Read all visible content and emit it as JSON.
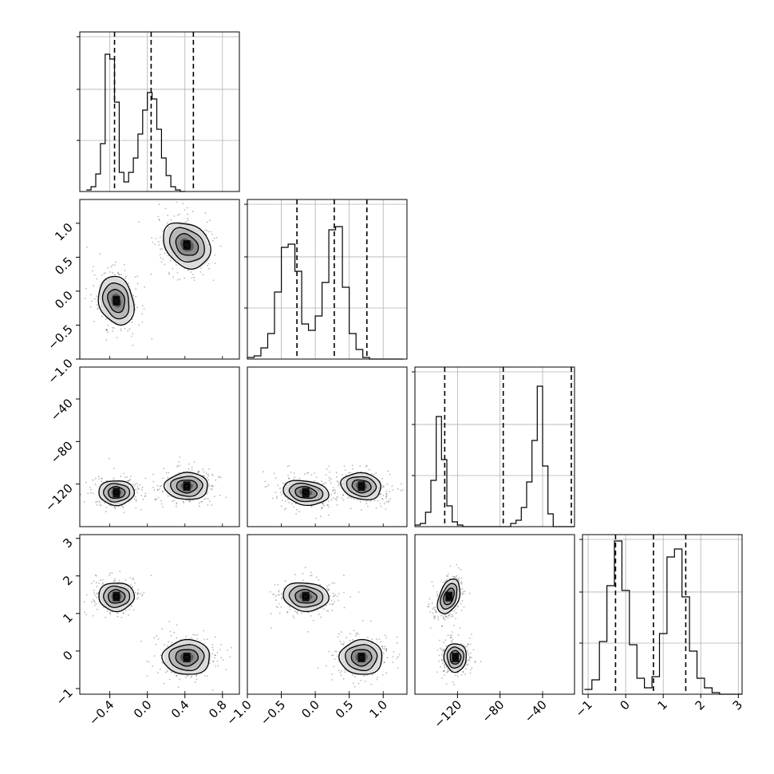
{
  "chart_data": {
    "type": "corner",
    "parameters": [
      {
        "range": [
          -0.72,
          0.98
        ],
        "ticks": [
          -0.4,
          0.0,
          0.4,
          0.8
        ],
        "tick_labels": [
          "−0.4",
          "0.0",
          "0.4",
          "0.8"
        ],
        "quantiles": [
          -0.35,
          0.04,
          0.49
        ],
        "hist": {
          "bin_start": -0.65,
          "bin_width": 0.05,
          "counts": [
            0.01,
            0.03,
            0.11,
            0.3,
            0.86,
            0.83,
            0.56,
            0.12,
            0.06,
            0.12,
            0.21,
            0.36,
            0.51,
            0.62,
            0.58,
            0.39,
            0.21,
            0.1,
            0.03,
            0.01,
            0.0
          ]
        }
      },
      {
        "range": [
          -1.0,
          1.35
        ],
        "ticks": [
          -1.0,
          -0.5,
          0.0,
          0.5,
          1.0
        ],
        "tick_labels": [
          "−1.0",
          "−0.5",
          "0.0",
          "0.5",
          "1.0"
        ],
        "quantiles": [
          -0.27,
          0.28,
          0.76
        ],
        "hist": {
          "bin_start": -1.0,
          "bin_width": 0.1,
          "counts": [
            0.01,
            0.02,
            0.07,
            0.16,
            0.42,
            0.7,
            0.72,
            0.55,
            0.22,
            0.18,
            0.27,
            0.48,
            0.81,
            0.83,
            0.45,
            0.16,
            0.06,
            0.01,
            0.0,
            0.0,
            0.0,
            0.0,
            0.0
          ]
        }
      },
      {
        "range": [
          -160,
          -10
        ],
        "ticks": [
          -120,
          -80,
          -40
        ],
        "tick_labels": [
          "−120",
          "−80",
          "−40"
        ],
        "quantiles": [
          -132,
          -77,
          -13
        ],
        "hist": {
          "bin_start": -160,
          "bin_width": 5,
          "counts": [
            0.01,
            0.02,
            0.09,
            0.29,
            0.69,
            0.42,
            0.13,
            0.03,
            0.01,
            0.0,
            0.0,
            0.0,
            0.0,
            0.0,
            0.0,
            0.0,
            0.0,
            0.0,
            0.02,
            0.04,
            0.12,
            0.28,
            0.54,
            0.88,
            0.38,
            0.08,
            0.0,
            0.0,
            0.0,
            0.0
          ]
        }
      },
      {
        "range": [
          -1.15,
          3.1
        ],
        "ticks": [
          -1,
          0,
          1,
          2,
          3
        ],
        "tick_labels": [
          "−1",
          "0",
          "1",
          "2",
          "3"
        ],
        "quantiles": [
          -0.27,
          0.74,
          1.6
        ],
        "hist": {
          "bin_start": -1.1,
          "bin_width": 0.2,
          "counts": [
            0.03,
            0.09,
            0.33,
            0.68,
            0.96,
            0.65,
            0.31,
            0.1,
            0.04,
            0.11,
            0.38,
            0.86,
            0.91,
            0.61,
            0.27,
            0.1,
            0.04,
            0.01,
            0.0,
            0.0,
            0.0
          ]
        }
      }
    ],
    "modes": [
      [
        -0.33,
        -0.14,
        -128,
        1.45
      ],
      [
        0.42,
        0.68,
        -122,
        -0.17
      ]
    ],
    "pair_sigmas": [
      {
        "j": 0,
        "i": 1,
        "modes": [
          [
            0.09,
            0.17,
            -0.2
          ],
          [
            0.12,
            0.16,
            -0.25
          ]
        ]
      },
      {
        "j": 0,
        "i": 2,
        "modes": [
          [
            0.09,
            5.5,
            0.0
          ],
          [
            0.11,
            6.0,
            0.0
          ]
        ]
      },
      {
        "j": 1,
        "i": 2,
        "modes": [
          [
            0.16,
            5.5,
            -0.2
          ],
          [
            0.14,
            6.0,
            -0.15
          ]
        ]
      },
      {
        "j": 0,
        "i": 3,
        "modes": [
          [
            0.09,
            0.18,
            0.0
          ],
          [
            0.12,
            0.22,
            0.0
          ]
        ]
      },
      {
        "j": 1,
        "i": 3,
        "modes": [
          [
            0.16,
            0.18,
            -0.1
          ],
          [
            0.15,
            0.22,
            0.0
          ]
        ]
      },
      {
        "j": 2,
        "i": 3,
        "modes": [
          [
            5.0,
            0.22,
            0.4
          ],
          [
            5.0,
            0.18,
            0.0
          ]
        ]
      }
    ],
    "contour_levels": [
      0.3,
      1.0,
      1.55,
      2.1
    ],
    "grid": true
  }
}
